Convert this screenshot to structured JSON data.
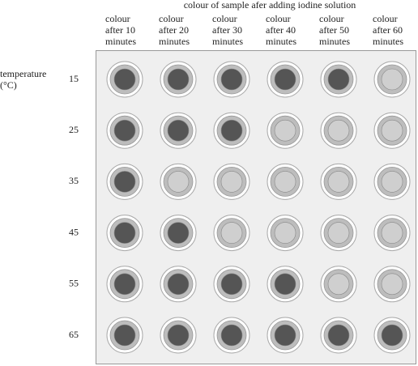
{
  "title": "colour of sample afer adding iodine solution",
  "row_label": [
    "temperature",
    "(°C)"
  ],
  "columns": [
    [
      "colour",
      "after 10",
      "minutes"
    ],
    [
      "colour",
      "after 20",
      "minutes"
    ],
    [
      "colour",
      "after 30",
      "minutes"
    ],
    [
      "colour",
      "after 40",
      "minutes"
    ],
    [
      "colour",
      "after 50",
      "minutes"
    ],
    [
      "colour",
      "after 60",
      "minutes"
    ]
  ],
  "rows": [
    {
      "label": "15",
      "cells": [
        "#555555",
        "#555555",
        "#555555",
        "#555555",
        "#555555",
        "#cfcfcf"
      ]
    },
    {
      "label": "25",
      "cells": [
        "#555555",
        "#555555",
        "#555555",
        "#cfcfcf",
        "#cfcfcf",
        "#cfcfcf"
      ]
    },
    {
      "label": "35",
      "cells": [
        "#555555",
        "#cfcfcf",
        "#cfcfcf",
        "#cfcfcf",
        "#cfcfcf",
        "#cfcfcf"
      ]
    },
    {
      "label": "45",
      "cells": [
        "#555555",
        "#555555",
        "#cfcfcf",
        "#cfcfcf",
        "#cfcfcf",
        "#cfcfcf"
      ]
    },
    {
      "label": "55",
      "cells": [
        "#555555",
        "#555555",
        "#555555",
        "#555555",
        "#cfcfcf",
        "#cfcfcf"
      ]
    },
    {
      "label": "65",
      "cells": [
        "#555555",
        "#555555",
        "#555555",
        "#555555",
        "#555555",
        "#555555"
      ]
    }
  ]
}
